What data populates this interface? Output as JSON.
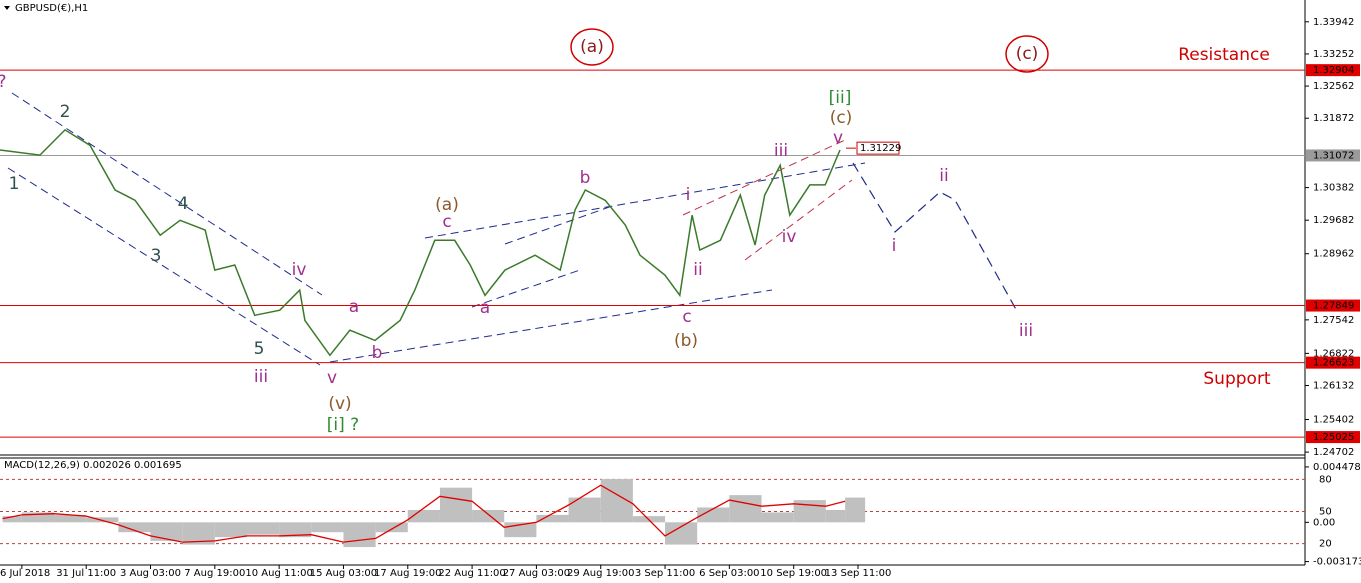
{
  "title": "GBPUSD(€),H1",
  "chart_data": [
    {
      "type": "line",
      "xlim": [
        -0.34,
        19.95
      ],
      "xticks": [
        {
          "value": 0,
          "label": "26 Jul 2018"
        },
        {
          "value": 1,
          "label": "31 Jul 11:00"
        },
        {
          "value": 2,
          "label": "3 Aug 03:00"
        },
        {
          "value": 3,
          "label": "7 Aug 19:00"
        },
        {
          "value": 4,
          "label": "10 Aug 11:00"
        },
        {
          "value": 5,
          "label": "15 Aug 03:00"
        },
        {
          "value": 6,
          "label": "17 Aug 19:00"
        },
        {
          "value": 7,
          "label": "22 Aug 11:00"
        },
        {
          "value": 8,
          "label": "27 Aug 03:00"
        },
        {
          "value": 9,
          "label": "29 Aug 19:00"
        },
        {
          "value": 10,
          "label": "3 Sep 11:00"
        },
        {
          "value": 11,
          "label": "6 Sep 03:00"
        },
        {
          "value": 12,
          "label": "10 Sep 19:00"
        },
        {
          "value": 13,
          "label": "13 Sep 11:00"
        }
      ],
      "ylim": [
        1.2464,
        1.3441
      ],
      "yticks": [
        1.33942,
        1.33252,
        1.32562,
        1.31872,
        1.30382,
        1.29682,
        1.28962,
        1.27542,
        1.26822,
        1.26132,
        1.25402,
        1.24702
      ],
      "color": "#3a7a2a",
      "x": [
        -0.34,
        0.28,
        0.67,
        1.06,
        1.45,
        1.76,
        2.15,
        2.46,
        2.85,
        3.0,
        3.31,
        3.62,
        4.01,
        4.32,
        4.4,
        4.79,
        5.1,
        5.49,
        5.88,
        6.11,
        6.42,
        6.73,
        6.97,
        7.2,
        7.51,
        7.98,
        8.37,
        8.6,
        8.76,
        9.07,
        9.38,
        9.61,
        10.0,
        10.23,
        10.42,
        10.54,
        10.86,
        11.17,
        11.4,
        11.55,
        11.79,
        11.94,
        12.25,
        12.49,
        12.72
      ],
      "values": [
        1.3119,
        1.3108,
        1.3162,
        1.3129,
        1.3033,
        1.3011,
        1.2936,
        1.2968,
        1.2947,
        1.2861,
        1.2872,
        1.2764,
        1.2775,
        1.2818,
        1.2753,
        1.2678,
        1.2732,
        1.271,
        1.2753,
        1.2818,
        1.2925,
        1.2925,
        1.2872,
        1.2807,
        1.2861,
        1.2893,
        1.2861,
        1.299,
        1.3033,
        1.3011,
        1.2958,
        1.2893,
        1.285,
        1.2807,
        1.2979,
        1.2904,
        1.2925,
        1.3022,
        1.2915,
        1.3022,
        1.3086,
        1.2979,
        1.3044,
        1.3044,
        1.3119
      ],
      "levels": [
        {
          "value": 1.32904,
          "color": "#e00000"
        },
        {
          "value": 1.31072,
          "color": "#9a9a9a"
        },
        {
          "value": 1.27849,
          "color": "#e00000"
        },
        {
          "value": 1.26623,
          "color": "#e00000"
        },
        {
          "value": 1.25025,
          "color": "#e00000"
        }
      ],
      "marker_label": 1.31229,
      "annotations": [
        {
          "text": "?",
          "color": "#a0308f"
        },
        {
          "text": "2",
          "color": "#2f4f4f"
        },
        {
          "text": "1",
          "color": "#2f4f4f"
        },
        {
          "text": "4",
          "color": "#2f4f4f"
        },
        {
          "text": "3",
          "color": "#2f4f4f"
        },
        {
          "text": "5",
          "color": "#2f4f4f"
        },
        {
          "text": "iv",
          "color": "#a0308f"
        },
        {
          "text": "iii",
          "color": "#a0308f"
        },
        {
          "text": "v",
          "color": "#a0308f"
        },
        {
          "text": "a",
          "color": "#a0308f"
        },
        {
          "text": "b",
          "color": "#a0308f"
        },
        {
          "text": "(v)",
          "color": "#8b5a2b"
        },
        {
          "text": "[i] ?",
          "color": "#2e8b2e"
        },
        {
          "text": "(a)",
          "color": "#8b5a2b"
        },
        {
          "text": "c",
          "color": "#a0308f"
        },
        {
          "text": "a",
          "color": "#a0308f"
        },
        {
          "text": "b",
          "color": "#a0308f"
        },
        {
          "text": "i",
          "color": "#a0308f"
        },
        {
          "text": "ii",
          "color": "#a0308f"
        },
        {
          "text": "c",
          "color": "#a0308f"
        },
        {
          "text": "(b)",
          "color": "#8b5a2b"
        },
        {
          "text": "iii",
          "color": "#a0308f"
        },
        {
          "text": "iv",
          "color": "#a0308f"
        },
        {
          "text": "v",
          "color": "#a0308f"
        },
        {
          "text": "(c)",
          "color": "#8b5a2b"
        },
        {
          "text": "[ii]",
          "color": "#2e8b2e"
        },
        {
          "text": "ii",
          "color": "#a0308f"
        },
        {
          "text": "i",
          "color": "#a0308f"
        },
        {
          "text": "iii",
          "color": "#a0308f"
        },
        {
          "text": "(a)",
          "color": "#8b1a1a"
        },
        {
          "text": "(c)",
          "color": "#8b1a1a"
        },
        {
          "text": "Resistance",
          "color": "#d00000"
        },
        {
          "text": "Support",
          "color": "#d00000"
        }
      ]
    },
    {
      "type": "macd",
      "title": "MACD(12,26,9) 0.002026 0.001695",
      "ylim": [
        -0.00345,
        0.0052
      ],
      "yticks": [
        0.004478,
        {
          "value": 0,
          "label": "0.00"
        },
        -0.003173
      ],
      "y2lim": [
        0,
        100
      ],
      "y2ticks": [
        20,
        50,
        80
      ],
      "hist_color": "#c0c0c0",
      "signal_color": "#e00000",
      "x": [
        -0.3,
        0,
        0.5,
        1,
        1.5,
        2,
        2.5,
        3,
        3.5,
        4,
        4.5,
        5,
        5.5,
        6,
        6.5,
        7,
        7.5,
        8,
        8.5,
        9,
        9.5,
        10,
        10.5,
        11,
        11.5,
        12,
        12.5,
        12.8
      ],
      "histogram": [
        0.0005,
        0.0008,
        0.0006,
        0.0004,
        -0.0008,
        -0.0015,
        -0.0018,
        -0.0012,
        -0.001,
        -0.0012,
        -0.0008,
        -0.002,
        -0.0008,
        0.001,
        0.0028,
        0.001,
        -0.0012,
        0.0006,
        0.002,
        0.0035,
        0.0005,
        -0.0018,
        0.0012,
        0.0022,
        0.0008,
        0.0018,
        0.001,
        0.002
      ],
      "signal": [
        0.0003,
        0.0006,
        0.0007,
        0.0005,
        -0.0002,
        -0.0011,
        -0.0016,
        -0.0015,
        -0.0011,
        -0.0011,
        -0.001,
        -0.0016,
        -0.0013,
        0.0002,
        0.0021,
        0.0017,
        -0.0004,
        0.0,
        0.0014,
        0.003,
        0.0015,
        -0.0011,
        0.0004,
        0.0018,
        0.0013,
        0.0015,
        0.0013,
        0.0017
      ]
    }
  ]
}
